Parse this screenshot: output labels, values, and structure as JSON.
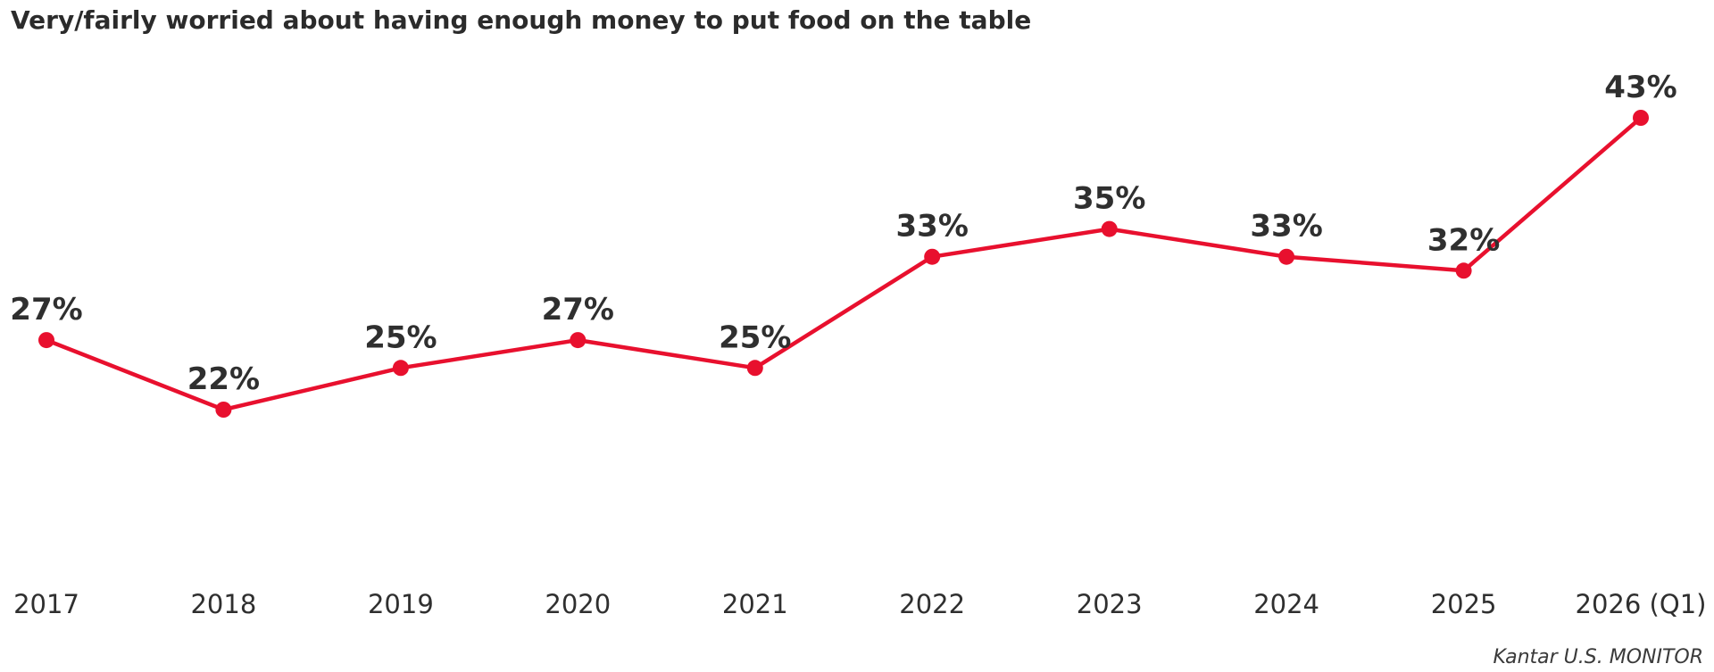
{
  "chart_data": {
    "type": "line",
    "title": "Very/fairly worried about having enough money to put food on the table",
    "xlabel": "",
    "ylabel": "",
    "categories": [
      "2017",
      "2018",
      "2019",
      "2020",
      "2021",
      "2022",
      "2023",
      "2024",
      "2025",
      "2026 (Q1)"
    ],
    "series": [
      {
        "values": [
          27,
          22,
          25,
          27,
          25,
          33,
          35,
          33,
          32,
          43
        ],
        "color": "#e8102e"
      }
    ],
    "data_labels": [
      "27%",
      "22%",
      "25%",
      "27%",
      "25%",
      "33%",
      "35%",
      "33%",
      "32%",
      "43%"
    ],
    "ylim": [
      0,
      50
    ],
    "grid": false,
    "legend": "none"
  },
  "source": "Kantar U.S. MONITOR"
}
